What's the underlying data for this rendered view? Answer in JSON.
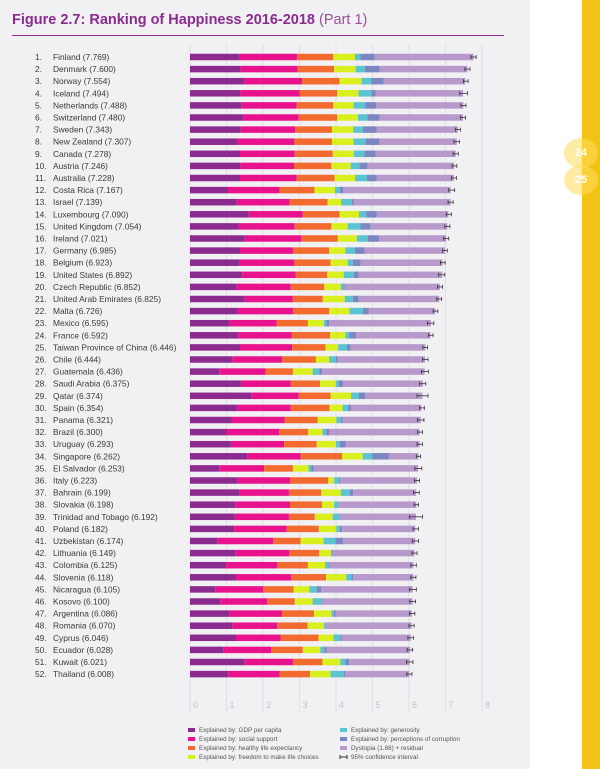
{
  "header": {
    "title": "Figure 2.7: Ranking of Happiness 2016-2018",
    "part": "(Part 1)"
  },
  "page_numbers": [
    "24",
    "25"
  ],
  "colors": {
    "title": "#8b2a8f",
    "gdp": "#8b2a8f",
    "social": "#e8138c",
    "health": "#f26a30",
    "freedom": "#d9ef1e",
    "generosity": "#5cc3d0",
    "corruption": "#7b86c2",
    "dystopia": "#b79acb",
    "ci": "#333333",
    "sidebar": "#f2c314"
  },
  "chart_data": {
    "type": "bar",
    "orientation": "horizontal",
    "stacked": true,
    "title": "Figure 2.7: Ranking of Happiness 2016-2018 (Part 1)",
    "xlabel": "",
    "ylabel": "",
    "xlim": [
      0,
      8
    ],
    "x_ticks": [
      "0",
      "1",
      "2",
      "3",
      "4",
      "5",
      "6",
      "7",
      "8"
    ],
    "grid": true,
    "legend_position": "bottom",
    "legend": [
      {
        "key": "gdp",
        "label": "Explained by: GDP per capita"
      },
      {
        "key": "social",
        "label": "Explained by: social support"
      },
      {
        "key": "health",
        "label": "Explained by: healthy life expectancy"
      },
      {
        "key": "freedom",
        "label": "Explained by: freedom to make life choices"
      },
      {
        "key": "generosity",
        "label": "Explained by: generosity"
      },
      {
        "key": "corruption",
        "label": "Explained by: perceptions of corruption"
      },
      {
        "key": "dystopia",
        "label": "Dystopia (1.88) + residual"
      },
      {
        "key": "ci",
        "label": "95% confidence interval"
      }
    ],
    "segment_keys": [
      "gdp",
      "social",
      "health",
      "freedom",
      "generosity",
      "corruption",
      "dystopia"
    ],
    "countries": [
      {
        "rank": "1.",
        "label": "Finland (7.769)",
        "score": 7.769,
        "segments": [
          1.34,
          1.59,
          0.99,
          0.6,
          0.15,
          0.39,
          2.71
        ],
        "ci": [
          7.7,
          7.84
        ]
      },
      {
        "rank": "2.",
        "label": "Denmark (7.600)",
        "score": 7.6,
        "segments": [
          1.38,
          1.57,
          1.0,
          0.59,
          0.25,
          0.41,
          2.4
        ],
        "ci": [
          7.53,
          7.67
        ]
      },
      {
        "rank": "3.",
        "label": "Norway (7.554)",
        "score": 7.554,
        "segments": [
          1.49,
          1.58,
          1.03,
          0.6,
          0.27,
          0.34,
          2.23
        ],
        "ci": [
          7.49,
          7.62
        ]
      },
      {
        "rank": "4.",
        "label": "Iceland (7.494)",
        "score": 7.494,
        "segments": [
          1.38,
          1.62,
          1.03,
          0.59,
          0.35,
          0.12,
          2.39
        ],
        "ci": [
          7.39,
          7.6
        ]
      },
      {
        "rank": "5.",
        "label": "Netherlands (7.488)",
        "score": 7.488,
        "segments": [
          1.4,
          1.52,
          1.0,
          0.56,
          0.32,
          0.3,
          2.39
        ],
        "ci": [
          7.42,
          7.56
        ]
      },
      {
        "rank": "6.",
        "label": "Switzerland (7.480)",
        "score": 7.48,
        "segments": [
          1.45,
          1.53,
          1.05,
          0.57,
          0.26,
          0.34,
          2.28
        ],
        "ci": [
          7.41,
          7.55
        ]
      },
      {
        "rank": "7.",
        "label": "Sweden (7.343)",
        "score": 7.343,
        "segments": [
          1.39,
          1.49,
          1.01,
          0.58,
          0.27,
          0.37,
          2.23
        ],
        "ci": [
          7.27,
          7.41
        ]
      },
      {
        "rank": "8.",
        "label": "New Zealand (7.307)",
        "score": 7.307,
        "segments": [
          1.3,
          1.56,
          1.03,
          0.59,
          0.33,
          0.38,
          2.12
        ],
        "ci": [
          7.23,
          7.38
        ]
      },
      {
        "rank": "9.",
        "label": "Canada (7.278)",
        "score": 7.278,
        "segments": [
          1.37,
          1.5,
          1.04,
          0.58,
          0.29,
          0.31,
          2.19
        ],
        "ci": [
          7.21,
          7.35
        ]
      },
      {
        "rank": "10.",
        "label": "Austria (7.246)",
        "score": 7.246,
        "segments": [
          1.38,
          1.47,
          1.02,
          0.53,
          0.24,
          0.23,
          2.37
        ],
        "ci": [
          7.18,
          7.31
        ]
      },
      {
        "rank": "11.",
        "label": "Australia (7.228)",
        "score": 7.228,
        "segments": [
          1.37,
          1.55,
          1.04,
          0.56,
          0.33,
          0.27,
          2.11
        ],
        "ci": [
          7.16,
          7.3
        ]
      },
      {
        "rank": "12.",
        "label": "Costa Rica (7.167)",
        "score": 7.167,
        "segments": [
          1.04,
          1.41,
          0.96,
          0.56,
          0.14,
          0.09,
          2.94
        ],
        "ci": [
          7.09,
          7.25
        ]
      },
      {
        "rank": "13.",
        "label": "Israel (7.139)",
        "score": 7.139,
        "segments": [
          1.28,
          1.45,
          1.04,
          0.37,
          0.3,
          0.05,
          2.65
        ],
        "ci": [
          7.07,
          7.21
        ]
      },
      {
        "rank": "14.",
        "label": "Luxembourg (7.090)",
        "score": 7.09,
        "segments": [
          1.61,
          1.48,
          1.01,
          0.53,
          0.2,
          0.29,
          1.96
        ],
        "ci": [
          7.02,
          7.16
        ]
      },
      {
        "rank": "15.",
        "label": "United Kingdom (7.054)",
        "score": 7.054,
        "segments": [
          1.33,
          1.54,
          1.0,
          0.45,
          0.35,
          0.28,
          2.1
        ],
        "ci": [
          6.98,
          7.12
        ]
      },
      {
        "rank": "16.",
        "label": "Ireland (7.021)",
        "score": 7.021,
        "segments": [
          1.5,
          1.55,
          1.0,
          0.52,
          0.3,
          0.31,
          1.84
        ],
        "ci": [
          6.95,
          7.09
        ]
      },
      {
        "rank": "17.",
        "label": "Germany (6.985)",
        "score": 6.985,
        "segments": [
          1.37,
          1.45,
          0.99,
          0.45,
          0.26,
          0.26,
          2.21
        ],
        "ci": [
          6.92,
          7.05
        ]
      },
      {
        "rank": "18.",
        "label": "Belgium (6.923)",
        "score": 6.923,
        "segments": [
          1.36,
          1.5,
          0.99,
          0.47,
          0.14,
          0.21,
          2.25
        ],
        "ci": [
          6.86,
          6.99
        ]
      },
      {
        "rank": "19.",
        "label": "United States (6.892)",
        "score": 6.892,
        "segments": [
          1.43,
          1.46,
          0.87,
          0.45,
          0.28,
          0.13,
          2.29
        ],
        "ci": [
          6.81,
          6.98
        ]
      },
      {
        "rank": "20.",
        "label": "Czech Republic (6.852)",
        "score": 6.852,
        "segments": [
          1.27,
          1.49,
          0.92,
          0.45,
          0.07,
          0.04,
          2.61
        ],
        "ci": [
          6.78,
          6.92
        ]
      },
      {
        "rank": "21.",
        "label": "United Arab Emirates (6.825)",
        "score": 6.825,
        "segments": [
          1.5,
          1.31,
          0.83,
          0.6,
          0.22,
          0.16,
          2.21
        ],
        "ci": [
          6.76,
          6.89
        ]
      },
      {
        "rank": "22.",
        "label": "Malta (6.726)",
        "score": 6.726,
        "segments": [
          1.3,
          1.52,
          0.99,
          0.56,
          0.37,
          0.15,
          1.83
        ],
        "ci": [
          6.66,
          6.79
        ]
      },
      {
        "rank": "23.",
        "label": "Mexico (6.595)",
        "score": 6.595,
        "segments": [
          1.07,
          1.3,
          0.86,
          0.44,
          0.07,
          0.07,
          2.79
        ],
        "ci": [
          6.51,
          6.68
        ]
      },
      {
        "rank": "24.",
        "label": "France (6.592)",
        "score": 6.592,
        "segments": [
          1.32,
          1.47,
          1.05,
          0.42,
          0.11,
          0.18,
          2.04
        ],
        "ci": [
          6.53,
          6.66
        ]
      },
      {
        "rank": "25.",
        "label": "Taiwan Province of China (6.446)",
        "score": 6.446,
        "segments": [
          1.37,
          1.43,
          0.91,
          0.35,
          0.24,
          0.1,
          2.05
        ],
        "ci": [
          6.38,
          6.51
        ]
      },
      {
        "rank": "26.",
        "label": "Chile (6.444)",
        "score": 6.444,
        "segments": [
          1.16,
          1.37,
          0.92,
          0.36,
          0.19,
          0.05,
          2.39
        ],
        "ci": [
          6.37,
          6.52
        ]
      },
      {
        "rank": "27.",
        "label": "Guatemala (6.436)",
        "score": 6.436,
        "segments": [
          0.8,
          1.27,
          0.75,
          0.54,
          0.18,
          0.08,
          2.81
        ],
        "ci": [
          6.34,
          6.53
        ]
      },
      {
        "rank": "28.",
        "label": "Saudi Arabia (6.375)",
        "score": 6.375,
        "segments": [
          1.4,
          1.36,
          0.8,
          0.44,
          0.07,
          0.12,
          2.19
        ],
        "ci": [
          6.29,
          6.46
        ]
      },
      {
        "rank": "29.",
        "label": "Qatar (6.374)",
        "score": 6.374,
        "segments": [
          1.68,
          1.3,
          0.87,
          0.56,
          0.22,
          0.17,
          1.57
        ],
        "ci": [
          6.22,
          6.52
        ]
      },
      {
        "rank": "30.",
        "label": "Spain (6.354)",
        "score": 6.354,
        "segments": [
          1.29,
          1.47,
          1.06,
          0.36,
          0.15,
          0.08,
          1.93
        ],
        "ci": [
          6.29,
          6.42
        ]
      },
      {
        "rank": "31.",
        "label": "Panama (6.321)",
        "score": 6.321,
        "segments": [
          1.15,
          1.44,
          0.91,
          0.51,
          0.12,
          0.05,
          2.14
        ],
        "ci": [
          6.23,
          6.41
        ]
      },
      {
        "rank": "32.",
        "label": "Brazil (6.300)",
        "score": 6.3,
        "segments": [
          1.0,
          1.44,
          0.8,
          0.39,
          0.1,
          0.09,
          2.47
        ],
        "ci": [
          6.24,
          6.37
        ]
      },
      {
        "rank": "33.",
        "label": "Uruguay (6.293)",
        "score": 6.293,
        "segments": [
          1.12,
          1.46,
          0.89,
          0.53,
          0.11,
          0.15,
          2.03
        ],
        "ci": [
          6.22,
          6.37
        ]
      },
      {
        "rank": "34.",
        "label": "Singapore (6.262)",
        "score": 6.262,
        "segments": [
          1.57,
          1.46,
          1.14,
          0.56,
          0.27,
          0.45,
          0.81
        ],
        "ci": [
          6.2,
          6.32
        ]
      },
      {
        "rank": "35.",
        "label": "El Salvador (6.253)",
        "score": 6.253,
        "segments": [
          0.8,
          1.23,
          0.79,
          0.43,
          0.07,
          0.07,
          2.86
        ],
        "ci": [
          6.16,
          6.35
        ]
      },
      {
        "rank": "36.",
        "label": "Italy (6.223)",
        "score": 6.223,
        "segments": [
          1.29,
          1.46,
          1.04,
          0.16,
          0.13,
          0.03,
          2.11
        ],
        "ci": [
          6.15,
          6.29
        ]
      },
      {
        "rank": "37.",
        "label": "Bahrain (6.199)",
        "score": 6.199,
        "segments": [
          1.36,
          1.35,
          0.88,
          0.54,
          0.25,
          0.09,
          1.73
        ],
        "ci": [
          6.12,
          6.28
        ]
      },
      {
        "rank": "38.",
        "label": "Slovakia (6.198)",
        "score": 6.198,
        "segments": [
          1.24,
          1.5,
          0.88,
          0.33,
          0.12,
          0.02,
          2.11
        ],
        "ci": [
          6.14,
          6.26
        ]
      },
      {
        "rank": "39.",
        "label": "Trinidad and Tobago (6.192)",
        "score": 6.192,
        "segments": [
          1.23,
          1.48,
          0.71,
          0.49,
          0.19,
          0.02,
          2.07
        ],
        "ci": [
          6.01,
          6.37
        ]
      },
      {
        "rank": "40.",
        "label": "Poland (6.182)",
        "score": 6.182,
        "segments": [
          1.21,
          1.44,
          0.88,
          0.48,
          0.1,
          0.06,
          2.0
        ],
        "ci": [
          6.11,
          6.26
        ]
      },
      {
        "rank": "41.",
        "label": "Uzbekistan (6.174)",
        "score": 6.174,
        "segments": [
          0.75,
          1.53,
          0.75,
          0.63,
          0.32,
          0.21,
          1.98
        ],
        "ci": [
          6.09,
          6.26
        ]
      },
      {
        "rank": "42.",
        "label": "Lithuania (6.149)",
        "score": 6.149,
        "segments": [
          1.24,
          1.48,
          0.82,
          0.32,
          0.03,
          0.02,
          2.24
        ],
        "ci": [
          6.08,
          6.22
        ]
      },
      {
        "rank": "43.",
        "label": "Colombia (6.125)",
        "score": 6.125,
        "segments": [
          0.99,
          1.4,
          0.84,
          0.47,
          0.1,
          0.03,
          2.29
        ],
        "ci": [
          6.05,
          6.2
        ]
      },
      {
        "rank": "44.",
        "label": "Slovenia (6.118)",
        "score": 6.118,
        "segments": [
          1.26,
          1.51,
          0.96,
          0.55,
          0.14,
          0.05,
          1.65
        ],
        "ci": [
          6.05,
          6.19
        ]
      },
      {
        "rank": "45.",
        "label": "Nicaragua (6.105)",
        "score": 6.105,
        "segments": [
          0.69,
          1.31,
          0.84,
          0.43,
          0.2,
          0.12,
          2.51
        ],
        "ci": [
          6.01,
          6.2
        ]
      },
      {
        "rank": "46.",
        "label": "Kosovo (6.100)",
        "score": 6.1,
        "segments": [
          0.83,
          1.28,
          0.76,
          0.49,
          0.26,
          0.01,
          2.47
        ],
        "ci": [
          6.02,
          6.18
        ]
      },
      {
        "rank": "47.",
        "label": "Argentina (6.086)",
        "score": 6.086,
        "segments": [
          1.09,
          1.43,
          0.88,
          0.47,
          0.07,
          0.05,
          2.09
        ],
        "ci": [
          6.01,
          6.16
        ]
      },
      {
        "rank": "48.",
        "label": "Romania (6.070)",
        "score": 6.07,
        "segments": [
          1.16,
          1.23,
          0.83,
          0.45,
          0.04,
          0.01,
          2.35
        ],
        "ci": [
          6.0,
          6.14
        ]
      },
      {
        "rank": "49.",
        "label": "Cyprus (6.046)",
        "score": 6.046,
        "segments": [
          1.26,
          1.22,
          1.04,
          0.41,
          0.19,
          0.04,
          1.89
        ],
        "ci": [
          5.97,
          6.12
        ]
      },
      {
        "rank": "50.",
        "label": "Ecuador (6.028)",
        "score": 6.028,
        "segments": [
          0.91,
          1.31,
          0.87,
          0.48,
          0.11,
          0.07,
          2.28
        ],
        "ci": [
          5.95,
          6.1
        ]
      },
      {
        "rank": "51.",
        "label": "Kuwait (6.021)",
        "score": 6.021,
        "segments": [
          1.5,
          1.32,
          0.81,
          0.49,
          0.14,
          0.1,
          1.66
        ],
        "ci": [
          5.93,
          6.11
        ]
      },
      {
        "rank": "52.",
        "label": "Thailand (6.008)",
        "score": 6.008,
        "segments": [
          1.05,
          1.41,
          0.83,
          0.56,
          0.37,
          0.03,
          1.76
        ],
        "ci": [
          5.94,
          6.08
        ]
      }
    ]
  }
}
